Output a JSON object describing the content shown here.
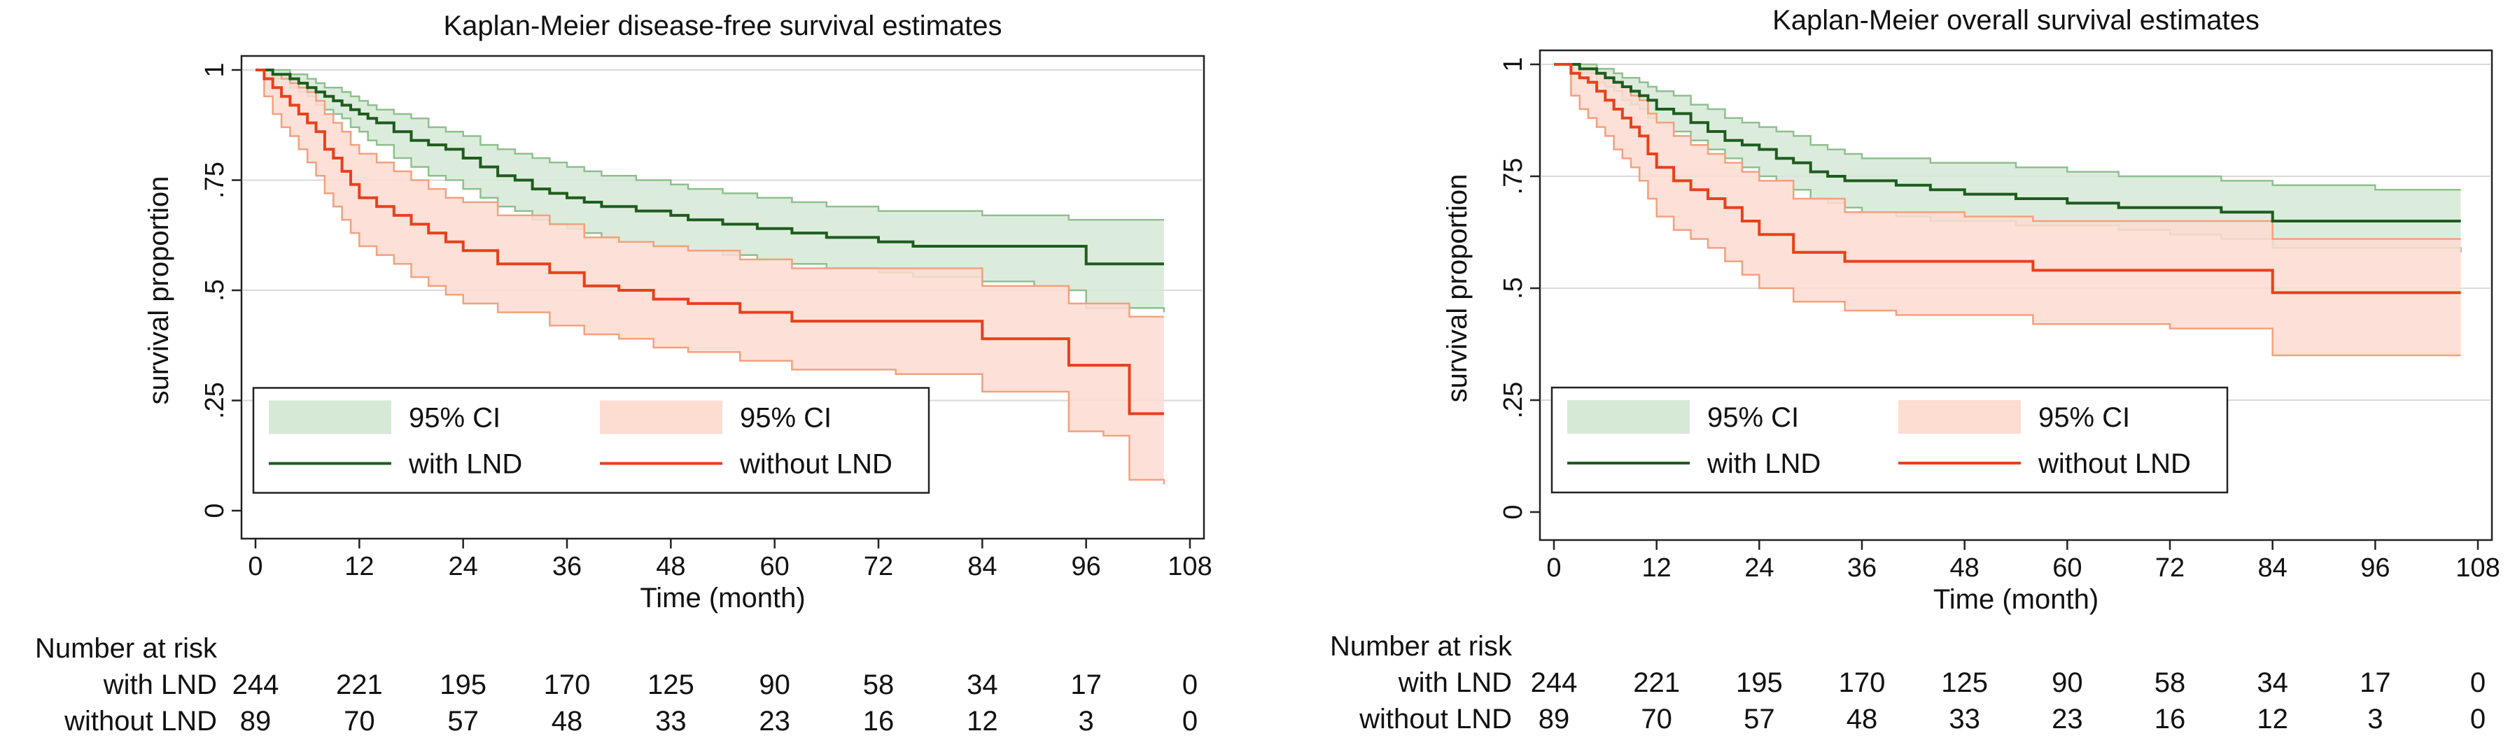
{
  "figure": {
    "colors": {
      "with_line": "#1e5c1e",
      "with_ci_fill": "#d6e9d6",
      "with_ci_edge": "#8fbf8f",
      "without_line": "#e8401c",
      "without_ci_fill": "#fddcd1",
      "without_ci_edge": "#f4a07f",
      "grid": "#d9d9d9",
      "axis": "#222222"
    }
  },
  "chart_data": [
    {
      "type": "line",
      "title": "Kaplan-Meier disease-free survival estimates",
      "xlabel": "Time (month)",
      "ylabel": "survival proportion",
      "xlim": [
        0,
        108
      ],
      "ylim": [
        0,
        1
      ],
      "xticks": [
        "0",
        "12",
        "24",
        "36",
        "48",
        "60",
        "72",
        "84",
        "96",
        "108"
      ],
      "yticks": [
        "0",
        ".25",
        ".5",
        ".75",
        "1"
      ],
      "grid": true,
      "legend_position": "bottom-inside",
      "legend": [
        {
          "key": "with_ci",
          "label": "95% CI"
        },
        {
          "key": "without_ci",
          "label": "95% CI"
        },
        {
          "key": "with",
          "label": "with LND"
        },
        {
          "key": "without",
          "label": "without LND"
        }
      ],
      "series": [
        {
          "name": "with LND",
          "key": "with",
          "x": [
            0,
            2,
            4,
            5,
            6,
            7,
            8,
            9,
            10,
            11,
            12,
            13,
            14,
            16,
            18,
            20,
            22,
            24,
            26,
            28,
            30,
            32,
            34,
            36,
            38,
            40,
            42,
            44,
            46,
            48,
            50,
            54,
            58,
            62,
            66,
            72,
            76,
            84,
            90,
            94,
            96,
            100,
            105
          ],
          "y": [
            1,
            0.99,
            0.98,
            0.97,
            0.96,
            0.95,
            0.94,
            0.93,
            0.92,
            0.91,
            0.9,
            0.89,
            0.88,
            0.86,
            0.84,
            0.83,
            0.82,
            0.8,
            0.78,
            0.76,
            0.75,
            0.73,
            0.72,
            0.71,
            0.7,
            0.69,
            0.69,
            0.68,
            0.68,
            0.67,
            0.66,
            0.65,
            0.64,
            0.63,
            0.62,
            0.61,
            0.6,
            0.6,
            0.6,
            0.6,
            0.56,
            0.56,
            0.56
          ],
          "lower": [
            1,
            0.98,
            0.96,
            0.95,
            0.94,
            0.92,
            0.91,
            0.9,
            0.89,
            0.87,
            0.86,
            0.84,
            0.83,
            0.8,
            0.78,
            0.76,
            0.75,
            0.73,
            0.71,
            0.69,
            0.68,
            0.66,
            0.65,
            0.64,
            0.63,
            0.62,
            0.61,
            0.61,
            0.6,
            0.6,
            0.59,
            0.58,
            0.57,
            0.56,
            0.55,
            0.54,
            0.53,
            0.52,
            0.51,
            0.5,
            0.46,
            0.46,
            0.45
          ],
          "upper": [
            1,
            1,
            0.99,
            0.99,
            0.98,
            0.97,
            0.96,
            0.96,
            0.95,
            0.94,
            0.93,
            0.92,
            0.91,
            0.9,
            0.89,
            0.87,
            0.86,
            0.85,
            0.83,
            0.82,
            0.81,
            0.8,
            0.79,
            0.78,
            0.77,
            0.76,
            0.76,
            0.75,
            0.75,
            0.74,
            0.73,
            0.72,
            0.71,
            0.7,
            0.69,
            0.68,
            0.68,
            0.67,
            0.67,
            0.66,
            0.66,
            0.66,
            0.66
          ]
        },
        {
          "name": "without LND",
          "key": "without",
          "x": [
            0,
            1,
            2,
            3,
            4,
            5,
            6,
            7,
            8,
            9,
            10,
            11,
            12,
            14,
            16,
            18,
            20,
            22,
            24,
            28,
            34,
            38,
            42,
            46,
            50,
            56,
            62,
            68,
            74,
            80,
            84,
            90,
            94,
            98,
            101,
            105
          ],
          "y": [
            1,
            0.98,
            0.96,
            0.94,
            0.92,
            0.9,
            0.88,
            0.86,
            0.82,
            0.8,
            0.77,
            0.74,
            0.71,
            0.69,
            0.67,
            0.65,
            0.63,
            0.61,
            0.59,
            0.56,
            0.54,
            0.51,
            0.5,
            0.48,
            0.47,
            0.45,
            0.43,
            0.43,
            0.43,
            0.43,
            0.39,
            0.39,
            0.33,
            0.33,
            0.22,
            0.22
          ],
          "lower": [
            1,
            0.94,
            0.9,
            0.87,
            0.85,
            0.82,
            0.79,
            0.76,
            0.72,
            0.69,
            0.66,
            0.63,
            0.6,
            0.58,
            0.56,
            0.53,
            0.51,
            0.49,
            0.47,
            0.45,
            0.42,
            0.4,
            0.39,
            0.37,
            0.36,
            0.34,
            0.32,
            0.32,
            0.31,
            0.31,
            0.27,
            0.27,
            0.18,
            0.17,
            0.07,
            0.06
          ],
          "upper": [
            1,
            1,
            0.99,
            0.98,
            0.97,
            0.96,
            0.95,
            0.93,
            0.9,
            0.88,
            0.86,
            0.83,
            0.81,
            0.79,
            0.77,
            0.75,
            0.73,
            0.71,
            0.7,
            0.67,
            0.65,
            0.62,
            0.61,
            0.6,
            0.59,
            0.57,
            0.55,
            0.55,
            0.55,
            0.55,
            0.51,
            0.51,
            0.47,
            0.47,
            0.44,
            0.44
          ]
        }
      ],
      "risk_table": {
        "title": "Number at risk",
        "rows": [
          {
            "label": "with LND",
            "values": [
              "244",
              "221",
              "195",
              "170",
              "125",
              "90",
              "58",
              "34",
              "17",
              "0"
            ]
          },
          {
            "label": "without LND",
            "values": [
              "89",
              "70",
              "57",
              "48",
              "33",
              "23",
              "16",
              "12",
              "3",
              "0"
            ]
          }
        ]
      }
    },
    {
      "type": "line",
      "title": "Kaplan-Meier overall survival estimates",
      "xlabel": "Time (month)",
      "ylabel": "survival proportion",
      "xlim": [
        0,
        108
      ],
      "ylim": [
        0,
        1
      ],
      "xticks": [
        "0",
        "12",
        "24",
        "36",
        "48",
        "60",
        "72",
        "84",
        "96",
        "108"
      ],
      "yticks": [
        "0",
        ".25",
        ".5",
        ".75",
        "1"
      ],
      "grid": true,
      "legend_position": "bottom-inside",
      "legend": [
        {
          "key": "with_ci",
          "label": "95% CI"
        },
        {
          "key": "without_ci",
          "label": "95% CI"
        },
        {
          "key": "with",
          "label": "with LND"
        },
        {
          "key": "without",
          "label": "without LND"
        }
      ],
      "series": [
        {
          "name": "with LND",
          "key": "with",
          "x": [
            0,
            3,
            5,
            6,
            7,
            8,
            9,
            10,
            11,
            12,
            14,
            16,
            18,
            20,
            22,
            24,
            26,
            28,
            30,
            32,
            34,
            36,
            40,
            44,
            48,
            54,
            60,
            66,
            72,
            78,
            84,
            96,
            106
          ],
          "y": [
            1,
            0.99,
            0.98,
            0.97,
            0.96,
            0.95,
            0.94,
            0.93,
            0.92,
            0.9,
            0.89,
            0.87,
            0.85,
            0.83,
            0.82,
            0.81,
            0.79,
            0.78,
            0.76,
            0.75,
            0.74,
            0.74,
            0.73,
            0.72,
            0.71,
            0.7,
            0.69,
            0.68,
            0.68,
            0.67,
            0.65,
            0.65,
            0.65
          ],
          "lower": [
            1,
            0.98,
            0.96,
            0.95,
            0.94,
            0.92,
            0.91,
            0.9,
            0.88,
            0.87,
            0.85,
            0.83,
            0.81,
            0.79,
            0.77,
            0.75,
            0.74,
            0.72,
            0.7,
            0.69,
            0.68,
            0.67,
            0.66,
            0.65,
            0.65,
            0.64,
            0.64,
            0.63,
            0.62,
            0.61,
            0.59,
            0.59,
            0.58
          ],
          "upper": [
            1,
            1,
            0.99,
            0.99,
            0.98,
            0.97,
            0.97,
            0.96,
            0.95,
            0.94,
            0.93,
            0.91,
            0.9,
            0.88,
            0.87,
            0.86,
            0.85,
            0.84,
            0.82,
            0.81,
            0.8,
            0.79,
            0.79,
            0.78,
            0.78,
            0.77,
            0.76,
            0.75,
            0.75,
            0.74,
            0.73,
            0.72,
            0.72
          ]
        },
        {
          "name": "without LND",
          "key": "without",
          "x": [
            0,
            2,
            3,
            4,
            5,
            6,
            7,
            8,
            9,
            10,
            11,
            12,
            14,
            16,
            18,
            20,
            22,
            24,
            28,
            34,
            40,
            48,
            56,
            62,
            72,
            84,
            96,
            106
          ],
          "y": [
            1,
            0.98,
            0.97,
            0.96,
            0.94,
            0.92,
            0.9,
            0.88,
            0.86,
            0.84,
            0.8,
            0.77,
            0.74,
            0.72,
            0.7,
            0.68,
            0.65,
            0.62,
            0.58,
            0.56,
            0.56,
            0.56,
            0.54,
            0.54,
            0.54,
            0.49,
            0.49,
            0.49
          ],
          "lower": [
            1,
            0.93,
            0.9,
            0.88,
            0.86,
            0.84,
            0.81,
            0.79,
            0.77,
            0.74,
            0.7,
            0.66,
            0.63,
            0.61,
            0.59,
            0.56,
            0.53,
            0.5,
            0.47,
            0.45,
            0.44,
            0.44,
            0.42,
            0.42,
            0.41,
            0.35,
            0.35,
            0.35
          ],
          "upper": [
            1,
            1,
            0.99,
            0.99,
            0.98,
            0.97,
            0.96,
            0.95,
            0.93,
            0.92,
            0.89,
            0.87,
            0.84,
            0.82,
            0.8,
            0.78,
            0.76,
            0.74,
            0.7,
            0.67,
            0.67,
            0.66,
            0.65,
            0.65,
            0.65,
            0.61,
            0.61,
            0.61
          ]
        }
      ],
      "risk_table": {
        "title": "Number at risk",
        "rows": [
          {
            "label": "with LND",
            "values": [
              "244",
              "221",
              "195",
              "170",
              "125",
              "90",
              "58",
              "34",
              "17",
              "0"
            ]
          },
          {
            "label": "without LND",
            "values": [
              "89",
              "70",
              "57",
              "48",
              "33",
              "23",
              "16",
              "12",
              "3",
              "0"
            ]
          }
        ]
      }
    }
  ]
}
